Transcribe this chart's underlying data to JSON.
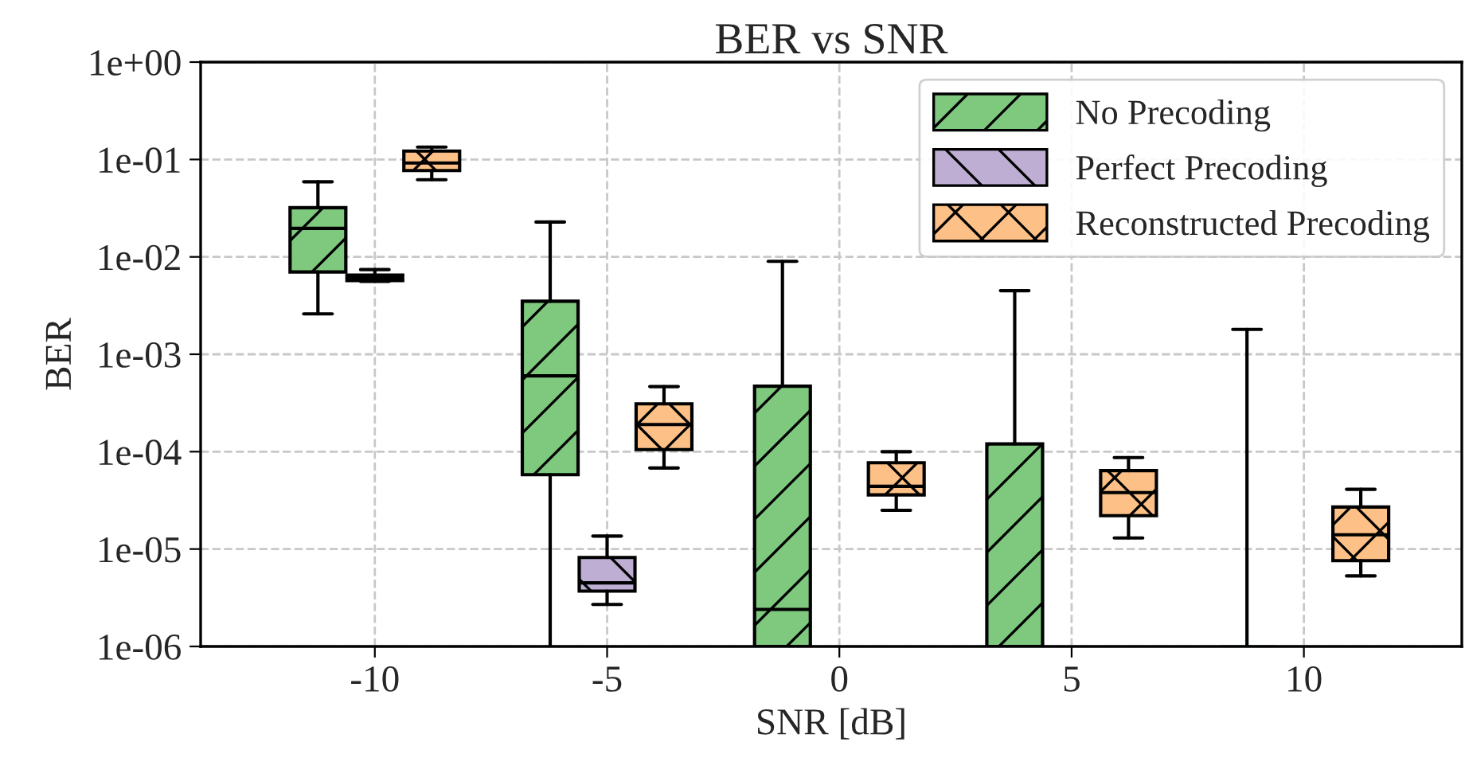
{
  "chart_data": {
    "type": "box",
    "title": "BER vs SNR",
    "xlabel": "SNR [dB]",
    "ylabel": "BER",
    "categories": [
      "-10",
      "-5",
      "0",
      "5",
      "10"
    ],
    "log": "y",
    "ylim": [
      1e-06,
      1
    ],
    "yticks": [
      {
        "value": 1e-06,
        "label": "1e-06"
      },
      {
        "value": 1e-05,
        "label": "1e-05"
      },
      {
        "value": 0.0001,
        "label": "1e-04"
      },
      {
        "value": 0.001,
        "label": "1e-03"
      },
      {
        "value": 0.01,
        "label": "1e-02"
      },
      {
        "value": 0.1,
        "label": "1e-01"
      },
      {
        "value": 1,
        "label": "1e+00"
      }
    ],
    "grid": true,
    "legend": "top right",
    "series": [
      {
        "name": "No Precoding",
        "color": "#7fc97f",
        "boxes": [
          {
            "low": 0.0026,
            "q1": 0.007,
            "median": 0.0196,
            "q3": 0.032,
            "high": 0.059
          },
          {
            "low": 1e-06,
            "q1": 5.8e-05,
            "median": 0.0006,
            "q3": 0.0035,
            "high": 0.0228
          },
          {
            "low": 1e-06,
            "q1": 1e-06,
            "median": 2.4e-06,
            "q3": 0.00047,
            "high": 0.009
          },
          {
            "low": 1e-06,
            "q1": 1e-06,
            "median": 1e-06,
            "q3": 0.00012,
            "high": 0.0045
          },
          {
            "low": 1e-06,
            "q1": 1e-06,
            "median": 1e-06,
            "q3": 1e-06,
            "high": 0.0018
          }
        ]
      },
      {
        "name": "Perfect Precoding",
        "color": "#beaed4",
        "boxes": [
          {
            "low": 0.0056,
            "q1": 0.0057,
            "median": 0.0061,
            "q3": 0.0065,
            "high": 0.0074
          },
          {
            "low": 2.7e-06,
            "q1": 3.7e-06,
            "median": 4.5e-06,
            "q3": 8.2e-06,
            "high": 1.36e-05
          },
          null,
          null,
          null
        ]
      },
      {
        "name": "Reconstructed Precoding",
        "color": "#fdc086",
        "boxes": [
          {
            "low": 0.062,
            "q1": 0.077,
            "median": 0.092,
            "q3": 0.122,
            "high": 0.134
          },
          {
            "low": 6.8e-05,
            "q1": 0.000105,
            "median": 0.00019,
            "q3": 0.00031,
            "high": 0.000466
          },
          {
            "low": 2.5e-05,
            "q1": 3.6e-05,
            "median": 4.4e-05,
            "q3": 7.7e-05,
            "high": 0.0001
          },
          {
            "low": 1.3e-05,
            "q1": 2.2e-05,
            "median": 3.8e-05,
            "q3": 6.4e-05,
            "high": 8.7e-05
          },
          {
            "low": 5.3e-06,
            "q1": 7.6e-06,
            "median": 1.4e-05,
            "q3": 2.7e-05,
            "high": 4.1e-05
          }
        ]
      }
    ]
  }
}
